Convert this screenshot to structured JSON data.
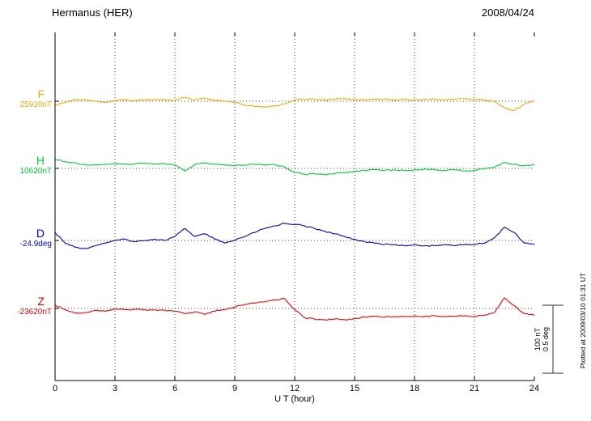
{
  "header": {
    "title": "Hermanus (HER)",
    "date": "2008/04/24"
  },
  "xaxis": {
    "label": "U T (hour)",
    "min": 0,
    "max": 24,
    "ticks": [
      0,
      3,
      6,
      9,
      12,
      15,
      18,
      21,
      24
    ],
    "gridline_hours": [
      3,
      6,
      9,
      12,
      15,
      18,
      21
    ]
  },
  "scalebar": {
    "line1": "100 nT",
    "line2": "0.5 deg"
  },
  "footer_note": "Plotted at 2009/03/10 01:31 UT",
  "chart_data": {
    "type": "line",
    "title": "Hermanus (HER) magnetogram 2008/04/24",
    "xlabel": "U T (hour)",
    "xlim": [
      0,
      24
    ],
    "x_step_hours": 0.5,
    "grid": "dotted vertical every 3 h; dotted horizontal baseline per trace",
    "scale_reference": {
      "nT": 100,
      "deg": 0.5
    },
    "series": [
      {
        "id": "F",
        "label": "F",
        "baseline_label": "25910nT",
        "baseline_value": 25910,
        "unit": "nT",
        "color": "#FFA500",
        "values": [
          -6,
          -2,
          2,
          3,
          0,
          -2,
          1,
          2,
          1,
          2,
          3,
          2,
          1,
          6,
          2,
          4,
          1,
          0,
          -2,
          -6,
          -8,
          -9,
          -7,
          -4,
          2,
          3,
          3,
          2,
          3,
          4,
          3,
          2,
          3,
          3,
          2,
          3,
          2,
          3,
          3,
          2,
          3,
          4,
          3,
          2,
          0,
          -10,
          -14,
          -4,
          0
        ]
      },
      {
        "id": "H",
        "label": "H",
        "baseline_label": "10620nT",
        "baseline_value": 10620,
        "unit": "nT",
        "color": "#00CC33",
        "values": [
          14,
          10,
          8,
          6,
          5,
          6,
          7,
          6,
          7,
          8,
          7,
          7,
          5,
          -4,
          6,
          8,
          6,
          5,
          4,
          5,
          6,
          5,
          6,
          2,
          -6,
          -9,
          -8,
          -9,
          -8,
          -6,
          -4,
          -3,
          -2,
          -3,
          -2,
          -3,
          -2,
          -1,
          -2,
          -3,
          -2,
          -4,
          -3,
          0,
          2,
          9,
          6,
          4,
          5
        ]
      },
      {
        "id": "D",
        "label": "D",
        "baseline_label": "-24.9deg",
        "baseline_value": -24.9,
        "unit": "deg",
        "color": "#0000CC",
        "values": [
          0.06,
          -0.02,
          -0.05,
          -0.06,
          -0.04,
          -0.02,
          0,
          0.01,
          -0.01,
          0,
          0.01,
          0,
          0.03,
          0.09,
          0.03,
          0.05,
          0.01,
          -0.02,
          0,
          0.03,
          0.06,
          0.09,
          0.11,
          0.13,
          0.12,
          0.11,
          0.09,
          0.07,
          0.05,
          0.03,
          0.01,
          -0.01,
          -0.02,
          -0.03,
          -0.03,
          -0.04,
          -0.03,
          -0.04,
          -0.04,
          -0.03,
          -0.04,
          -0.03,
          -0.03,
          -0.02,
          0.02,
          0.1,
          0.06,
          -0.02,
          -0.03
        ]
      },
      {
        "id": "Z",
        "label": "Z",
        "baseline_label": "-23620nT",
        "baseline_value": -23620,
        "unit": "nT",
        "color": "#EE0000",
        "values": [
          5,
          -2,
          -7,
          -6,
          -3,
          -4,
          -1,
          -2,
          -1,
          -2,
          -2,
          -3,
          -4,
          -8,
          -5,
          -9,
          -4,
          -2,
          2,
          6,
          8,
          10,
          13,
          15,
          -2,
          -14,
          -16,
          -17,
          -16,
          -17,
          -15,
          -13,
          -12,
          -13,
          -12,
          -12,
          -11,
          -12,
          -11,
          -12,
          -12,
          -11,
          -12,
          -10,
          -6,
          16,
          4,
          -8,
          -10
        ]
      }
    ]
  }
}
